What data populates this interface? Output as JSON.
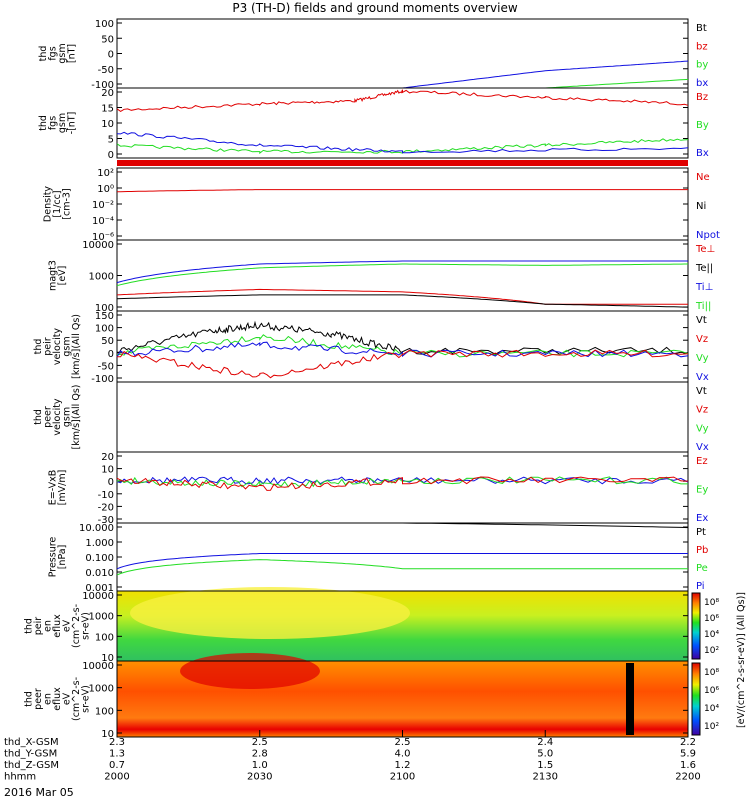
{
  "title": "P3 (TH-D) fields and ground moments overview",
  "date_label": "2016 Mar 05",
  "colors": {
    "black": "#000000",
    "red": "#e00000",
    "green": "#22dd22",
    "blue": "#1010e0"
  },
  "colorbar_units": "eV/(cm^2-s-sr-eV)",
  "colorbar_caption": "[eV/(cm^2-s-sr-eV)] (All Qs)]",
  "chart_data": [
    {
      "id": "fgs_gsm_1",
      "type": "line",
      "ylabel": [
        "thd",
        "fgs",
        "gsm",
        "[nT]"
      ],
      "ylim": [
        -100,
        100
      ],
      "yticks": [
        "100",
        "50",
        "0",
        "-50",
        "-100"
      ],
      "legend": [
        "Bt",
        "bz",
        "by",
        "bx"
      ],
      "series": [
        {
          "name": "bx",
          "x": [
            2100,
            2130,
            2200
          ],
          "y": [
            -100,
            -50,
            -22
          ]
        },
        {
          "name": "by",
          "x": [
            2130,
            2200
          ],
          "y": [
            -100,
            -75
          ]
        }
      ]
    },
    {
      "id": "fgs_gsm_2",
      "type": "line",
      "ylabel": [
        "thd",
        "fgs",
        "gsm",
        "-[nT]"
      ],
      "ylim": [
        -2,
        20
      ],
      "yticks": [
        "20",
        "15",
        "10",
        "5",
        "0"
      ],
      "legend": [
        "Bz",
        "By",
        "Bx"
      ],
      "series": [
        {
          "name": "Bz",
          "x": [
            2000,
            2030,
            2050,
            2100,
            2130,
            2200
          ],
          "y": [
            13,
            15,
            16,
            19,
            17,
            15
          ]
        },
        {
          "name": "By",
          "x": [
            2000,
            2030,
            2100,
            2130,
            2200
          ],
          "y": [
            2,
            0,
            0,
            2,
            4
          ]
        },
        {
          "name": "Bx",
          "x": [
            2000,
            2030,
            2100,
            2200
          ],
          "y": [
            6,
            2,
            0,
            1
          ]
        }
      ]
    },
    {
      "id": "density",
      "type": "line",
      "yscale": "log",
      "ylabel": [
        "Density",
        "[1/cc]",
        "[cm-3]"
      ],
      "ylim": [
        1e-07,
        1000.0
      ],
      "yticks": [
        "10²",
        "10⁰",
        "10⁻²",
        "10⁻⁴",
        "10⁻⁶"
      ],
      "legend": [
        "Ne",
        "Ni",
        "Npot"
      ],
      "series": [
        {
          "name": "Ne",
          "x": [
            2000,
            2030,
            2100,
            2200
          ],
          "y": [
            0.5,
            1.0,
            1.0,
            1.0
          ]
        }
      ]
    },
    {
      "id": "temperature",
      "type": "line",
      "yscale": "log",
      "ylabel": [
        "magt3",
        "[eV]"
      ],
      "ylim": [
        60,
        12000
      ],
      "yticks": [
        "10000",
        "1000",
        "100"
      ],
      "legend": [
        "Te⊥",
        "Te||",
        "Ti⊥",
        "Ti||"
      ],
      "series": [
        {
          "name": "Ti⊥",
          "x": [
            2000,
            2030,
            2100,
            2130,
            2200
          ],
          "y": [
            500,
            2000,
            2500,
            2500,
            2500
          ]
        },
        {
          "name": "Ti||",
          "x": [
            2000,
            2030,
            2100,
            2130,
            2200
          ],
          "y": [
            400,
            1500,
            2000,
            1800,
            2000
          ]
        },
        {
          "name": "Te⊥",
          "x": [
            2000,
            2030,
            2100,
            2130,
            2200
          ],
          "y": [
            200,
            300,
            250,
            100,
            100
          ]
        },
        {
          "name": "Te||",
          "x": [
            2000,
            2030,
            2100,
            2130,
            2200
          ],
          "y": [
            150,
            200,
            200,
            100,
            80
          ]
        }
      ]
    },
    {
      "id": "peir_velocity",
      "type": "line",
      "ylabel": [
        "thd",
        "peir",
        "velocity",
        "gsm",
        "[km/s](All Qs)"
      ],
      "ylim": [
        -100,
        150
      ],
      "yticks": [
        "150",
        "100",
        "50",
        "0",
        "-50",
        "-100"
      ],
      "legend": [
        "Vt",
        "Vz",
        "Vy",
        "Vx"
      ],
      "series": [
        {
          "name": "Vt",
          "x": [
            2000,
            2020,
            2030,
            2045,
            2100,
            2200
          ],
          "y": [
            10,
            80,
            100,
            70,
            10,
            10
          ]
        },
        {
          "name": "Vy",
          "x": [
            2000,
            2030,
            2100,
            2200
          ],
          "y": [
            0,
            60,
            0,
            0
          ]
        },
        {
          "name": "Vx",
          "x": [
            2000,
            2030,
            2100,
            2200
          ],
          "y": [
            0,
            30,
            0,
            0
          ]
        },
        {
          "name": "Vz",
          "x": [
            2000,
            2030,
            2100,
            2200
          ],
          "y": [
            0,
            -80,
            0,
            0
          ]
        }
      ]
    },
    {
      "id": "peer_velocity",
      "type": "line",
      "ylabel": [
        "thd",
        "peer",
        "velocity",
        "gsm",
        "[km/s](All Qs)"
      ],
      "ylim": [
        0,
        1
      ],
      "yticks": [],
      "legend": [
        "Vt",
        "Vz",
        "Vy",
        "Vx"
      ],
      "series": []
    },
    {
      "id": "efield",
      "type": "line",
      "ylabel": [
        "E=-VxB",
        "[mV/m]"
      ],
      "ylim": [
        -30,
        20
      ],
      "yticks": [
        "20",
        "10",
        "0",
        "-10",
        "-20",
        "-30"
      ],
      "legend": [
        "Ez",
        "Ey",
        "Ex"
      ],
      "series": [
        {
          "name": "Ex",
          "x": [
            2000,
            2030,
            2100,
            2200
          ],
          "y": [
            0,
            0,
            0,
            0
          ]
        },
        {
          "name": "Ey",
          "x": [
            2000,
            2030,
            2100,
            2200
          ],
          "y": [
            0,
            -3,
            0,
            0
          ]
        },
        {
          "name": "Ez",
          "x": [
            2000,
            2030,
            2100,
            2200
          ],
          "y": [
            0,
            -5,
            0,
            0
          ]
        }
      ]
    },
    {
      "id": "pressure",
      "type": "line",
      "yscale": "log",
      "ylabel": [
        "Pressure",
        "[nPa]"
      ],
      "ylim": [
        0.0007,
        20
      ],
      "yticks": [
        "10.000",
        "1.000",
        "0.100",
        "0.010",
        "0.001"
      ],
      "legend": [
        "Pt",
        "Pb",
        "Pe",
        "Pi"
      ],
      "series": [
        {
          "name": "Pt",
          "x": [
            2100,
            2200
          ],
          "y": [
            20,
            10
          ]
        },
        {
          "name": "Pi",
          "x": [
            2000,
            2030,
            2100,
            2200
          ],
          "y": [
            0.02,
            0.2,
            0.2,
            0.2
          ]
        },
        {
          "name": "Pe",
          "x": [
            2000,
            2030,
            2100,
            2200
          ],
          "y": [
            0.008,
            0.08,
            0.02,
            0.02
          ]
        }
      ]
    },
    {
      "id": "peir_eflux",
      "type": "heatmap",
      "yscale": "log",
      "ylabel": [
        "thd",
        "peir",
        "en",
        "eflux",
        "eV",
        "(cm^2-s-",
        "sr-eV)"
      ],
      "ylim": [
        8,
        25000
      ],
      "yticks": [
        "10000",
        "1000",
        "100",
        "10"
      ],
      "colorbar_ticks": [
        "10⁸",
        "10⁶",
        "10⁴",
        "10²"
      ]
    },
    {
      "id": "peer_eflux",
      "type": "heatmap",
      "yscale": "log",
      "ylabel": [
        "thd",
        "peer",
        "en",
        "eflux",
        "eV",
        "(cm^2-s-",
        "sr-eV)"
      ],
      "ylim": [
        6,
        25000
      ],
      "yticks": [
        "10000",
        "1000",
        "100",
        "10"
      ],
      "colorbar_ticks": [
        "10⁸",
        "10⁶",
        "10⁴",
        "10²"
      ]
    }
  ],
  "time_axis": {
    "rows": [
      {
        "label": "thd_X-GSM",
        "values": [
          "2.3",
          "2.5",
          "2.5",
          "2.4",
          "2.2"
        ]
      },
      {
        "label": "thd_Y-GSM",
        "values": [
          "1.3",
          "2.8",
          "4.0",
          "5.0",
          "5.9"
        ]
      },
      {
        "label": "thd_Z-GSM",
        "values": [
          "0.7",
          "1.0",
          "1.2",
          "1.5",
          "1.6"
        ]
      },
      {
        "label": "hhmm",
        "values": [
          "2000",
          "2030",
          "2100",
          "2130",
          "2200"
        ]
      }
    ],
    "x": [
      2000,
      2030,
      2100,
      2130,
      2200
    ]
  }
}
